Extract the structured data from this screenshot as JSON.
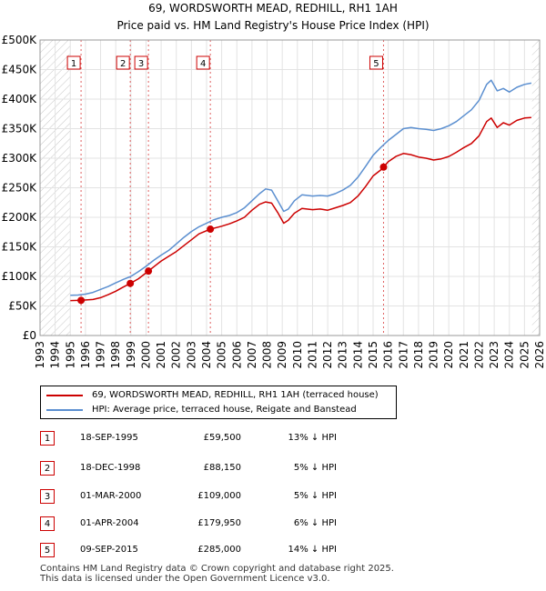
{
  "chart_data": {
    "type": "line",
    "title": "69, WORDSWORTH MEAD, REDHILL, RH1 1AH",
    "subtitle": "Price paid vs. HM Land Registry's House Price Index (HPI)",
    "xlabel": "",
    "ylabel": "",
    "xlim": [
      1993,
      2026
    ],
    "ylim": [
      0,
      500000
    ],
    "x_ticks": [
      1993,
      1994,
      1995,
      1996,
      1997,
      1998,
      1999,
      2000,
      2001,
      2002,
      2003,
      2004,
      2005,
      2006,
      2007,
      2008,
      2009,
      2010,
      2011,
      2012,
      2013,
      2014,
      2015,
      2016,
      2017,
      2018,
      2019,
      2020,
      2021,
      2022,
      2023,
      2024,
      2025,
      2026
    ],
    "y_ticks": [
      0,
      50000,
      100000,
      150000,
      200000,
      250000,
      300000,
      350000,
      400000,
      450000,
      500000
    ],
    "y_tick_labels": [
      "£0",
      "£50K",
      "£100K",
      "£150K",
      "£200K",
      "£250K",
      "£300K",
      "£350K",
      "£400K",
      "£450K",
      "£500K"
    ],
    "hatched_ranges": [
      [
        1993,
        1995.0
      ],
      [
        2025.5,
        2026
      ]
    ],
    "series": [
      {
        "name": "69, WORDSWORTH MEAD, REDHILL, RH1 1AH (terraced house)",
        "color": "#cc0000",
        "points": [
          [
            1995.0,
            59000
          ],
          [
            1995.71,
            59500
          ],
          [
            1996.5,
            61000
          ],
          [
            1997.0,
            64000
          ],
          [
            1997.5,
            69000
          ],
          [
            1998.0,
            75000
          ],
          [
            1998.5,
            82000
          ],
          [
            1998.96,
            88150
          ],
          [
            1999.5,
            96000
          ],
          [
            2000.16,
            109000
          ],
          [
            2000.6,
            118000
          ],
          [
            2001.0,
            126000
          ],
          [
            2001.5,
            134000
          ],
          [
            2002.0,
            142000
          ],
          [
            2002.5,
            152000
          ],
          [
            2003.0,
            162000
          ],
          [
            2003.5,
            172000
          ],
          [
            2004.25,
            179950
          ],
          [
            2005.0,
            185000
          ],
          [
            2005.5,
            189000
          ],
          [
            2006.0,
            194000
          ],
          [
            2006.5,
            200000
          ],
          [
            2007.0,
            212000
          ],
          [
            2007.5,
            222000
          ],
          [
            2007.9,
            226000
          ],
          [
            2008.3,
            224000
          ],
          [
            2008.7,
            208000
          ],
          [
            2009.1,
            190000
          ],
          [
            2009.4,
            195000
          ],
          [
            2009.8,
            207000
          ],
          [
            2010.3,
            215000
          ],
          [
            2011.0,
            213000
          ],
          [
            2011.5,
            214000
          ],
          [
            2012.0,
            212000
          ],
          [
            2012.5,
            216000
          ],
          [
            2013.0,
            220000
          ],
          [
            2013.5,
            225000
          ],
          [
            2014.0,
            236000
          ],
          [
            2014.5,
            252000
          ],
          [
            2015.0,
            270000
          ],
          [
            2015.5,
            280000
          ],
          [
            2015.69,
            285000
          ],
          [
            2016.0,
            294000
          ],
          [
            2016.5,
            303000
          ],
          [
            2017.0,
            308000
          ],
          [
            2017.5,
            306000
          ],
          [
            2018.0,
            302000
          ],
          [
            2018.5,
            300000
          ],
          [
            2019.0,
            297000
          ],
          [
            2019.5,
            299000
          ],
          [
            2020.0,
            303000
          ],
          [
            2020.5,
            310000
          ],
          [
            2021.0,
            318000
          ],
          [
            2021.5,
            325000
          ],
          [
            2022.0,
            338000
          ],
          [
            2022.5,
            362000
          ],
          [
            2022.8,
            368000
          ],
          [
            2023.2,
            352000
          ],
          [
            2023.6,
            360000
          ],
          [
            2024.0,
            356000
          ],
          [
            2024.5,
            364000
          ],
          [
            2025.0,
            368000
          ],
          [
            2025.45,
            369000
          ]
        ]
      },
      {
        "name": "HPI: Average price, terraced house, Reigate and Banstead",
        "color": "#5b8fd0",
        "points": [
          [
            1995.0,
            68000
          ],
          [
            1995.5,
            68500
          ],
          [
            1996.0,
            70000
          ],
          [
            1996.5,
            73000
          ],
          [
            1997.0,
            78000
          ],
          [
            1997.5,
            83000
          ],
          [
            1998.0,
            89000
          ],
          [
            1998.5,
            95000
          ],
          [
            1999.0,
            100000
          ],
          [
            1999.5,
            108000
          ],
          [
            2000.0,
            117000
          ],
          [
            2000.5,
            127000
          ],
          [
            2001.0,
            136000
          ],
          [
            2001.5,
            144000
          ],
          [
            2002.0,
            155000
          ],
          [
            2002.5,
            166000
          ],
          [
            2003.0,
            176000
          ],
          [
            2003.5,
            184000
          ],
          [
            2004.0,
            190000
          ],
          [
            2004.5,
            196000
          ],
          [
            2005.0,
            200000
          ],
          [
            2005.5,
            203000
          ],
          [
            2006.0,
            208000
          ],
          [
            2006.5,
            216000
          ],
          [
            2007.0,
            228000
          ],
          [
            2007.5,
            240000
          ],
          [
            2007.9,
            248000
          ],
          [
            2008.3,
            246000
          ],
          [
            2008.7,
            228000
          ],
          [
            2009.1,
            210000
          ],
          [
            2009.4,
            214000
          ],
          [
            2009.8,
            228000
          ],
          [
            2010.3,
            238000
          ],
          [
            2011.0,
            236000
          ],
          [
            2011.5,
            237000
          ],
          [
            2012.0,
            236000
          ],
          [
            2012.5,
            240000
          ],
          [
            2013.0,
            246000
          ],
          [
            2013.5,
            254000
          ],
          [
            2014.0,
            268000
          ],
          [
            2014.5,
            286000
          ],
          [
            2015.0,
            305000
          ],
          [
            2015.5,
            318000
          ],
          [
            2016.0,
            330000
          ],
          [
            2016.5,
            340000
          ],
          [
            2017.0,
            350000
          ],
          [
            2017.5,
            352000
          ],
          [
            2018.0,
            350000
          ],
          [
            2018.5,
            349000
          ],
          [
            2019.0,
            347000
          ],
          [
            2019.5,
            350000
          ],
          [
            2020.0,
            355000
          ],
          [
            2020.5,
            362000
          ],
          [
            2021.0,
            372000
          ],
          [
            2021.5,
            382000
          ],
          [
            2022.0,
            398000
          ],
          [
            2022.5,
            425000
          ],
          [
            2022.8,
            432000
          ],
          [
            2023.2,
            414000
          ],
          [
            2023.6,
            418000
          ],
          [
            2024.0,
            412000
          ],
          [
            2024.5,
            420000
          ],
          [
            2025.0,
            425000
          ],
          [
            2025.45,
            427000
          ]
        ]
      }
    ],
    "transactions": [
      {
        "id": "1",
        "date": "18-SEP-1995",
        "x": 1995.71,
        "price_value": 59500,
        "price": "£59,500",
        "hpi": "13% ↓ HPI"
      },
      {
        "id": "2",
        "date": "18-DEC-1998",
        "x": 1998.96,
        "price_value": 88150,
        "price": "£88,150",
        "hpi": "5% ↓ HPI"
      },
      {
        "id": "3",
        "date": "01-MAR-2000",
        "x": 2000.16,
        "price_value": 109000,
        "price": "£109,000",
        "hpi": "5% ↓ HPI"
      },
      {
        "id": "4",
        "date": "01-APR-2004",
        "x": 2004.25,
        "price_value": 179950,
        "price": "£179,950",
        "hpi": "6% ↓ HPI"
      },
      {
        "id": "5",
        "date": "09-SEP-2015",
        "x": 2015.69,
        "price_value": 285000,
        "price": "£285,000",
        "hpi": "14% ↓ HPI"
      }
    ]
  },
  "legend": {
    "items": [
      {
        "label": "69, WORDSWORTH MEAD, REDHILL, RH1 1AH (terraced house)",
        "color": "#cc0000"
      },
      {
        "label": "HPI: Average price, terraced house, Reigate and Banstead",
        "color": "#5b8fd0"
      }
    ]
  },
  "footer": {
    "line1": "Contains HM Land Registry data © Crown copyright and database right 2025.",
    "line2": "This data is licensed under the Open Government Licence v3.0."
  }
}
